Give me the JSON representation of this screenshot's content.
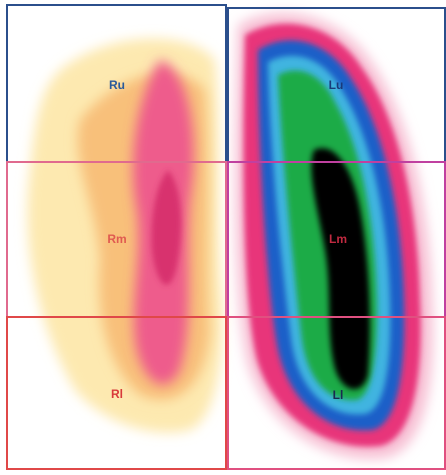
{
  "regions": [
    {
      "label": "Ru"
    },
    {
      "label": "Rm"
    },
    {
      "label": "Rl"
    },
    {
      "label": "Lu"
    },
    {
      "label": "Lm"
    },
    {
      "label": "Ll"
    }
  ]
}
